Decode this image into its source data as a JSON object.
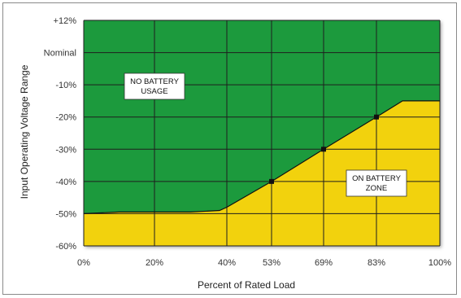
{
  "chart_data": {
    "type": "area",
    "xlabel": "Percent of Rated Load",
    "ylabel": "Input Operating Voltage Range",
    "x_ticks": [
      "0%",
      "20%",
      "40%",
      "53%",
      "69%",
      "83%",
      "100%"
    ],
    "x_tick_values": [
      0,
      20,
      40,
      53,
      69,
      83,
      100
    ],
    "y_ticks": [
      "+12%",
      "Nominal",
      "-10%",
      "-20%",
      "-30%",
      "-40%",
      "-50%",
      "-60%"
    ],
    "y_tick_values": [
      12,
      0,
      -10,
      -20,
      -30,
      -40,
      -50,
      -60
    ],
    "xlim": [
      0,
      100
    ],
    "ylim": [
      -60,
      12
    ],
    "grid": true,
    "boundary": {
      "x": [
        0,
        10,
        20,
        30,
        38,
        40,
        53,
        69,
        83,
        90,
        100
      ],
      "y": [
        -50,
        -49.5,
        -49.5,
        -49.5,
        -49,
        -48,
        -40,
        -30,
        -20,
        -15,
        -15
      ]
    },
    "marked_points": [
      {
        "x": 53,
        "y": -40
      },
      {
        "x": 69,
        "y": -30
      },
      {
        "x": 83,
        "y": -20
      }
    ],
    "regions": [
      {
        "label_lines": [
          "NO BATTERY",
          "USAGE"
        ],
        "color": "#1a9a3c"
      },
      {
        "label_lines": [
          "ON BATTERY",
          "ZONE"
        ],
        "color": "#f2d20c"
      }
    ],
    "colors": {
      "upper": "#1a9a3c",
      "lower": "#f2d20c",
      "grid": "#1e1e1e",
      "line": "#111111"
    }
  }
}
